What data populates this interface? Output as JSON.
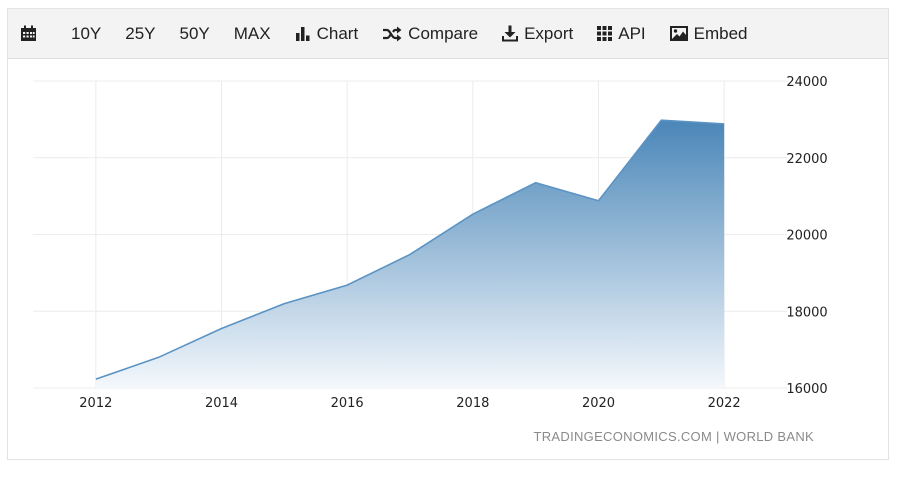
{
  "toolbar": {
    "items": [
      {
        "id": "calendar",
        "icon": "calendar-icon",
        "label": ""
      },
      {
        "id": "10y",
        "label": "10Y"
      },
      {
        "id": "25y",
        "label": "25Y"
      },
      {
        "id": "50y",
        "label": "50Y"
      },
      {
        "id": "max",
        "label": "MAX"
      },
      {
        "id": "chart",
        "icon": "bar-chart-icon",
        "label": "Chart"
      },
      {
        "id": "compare",
        "icon": "shuffle-icon",
        "label": "Compare"
      },
      {
        "id": "export",
        "icon": "download-icon",
        "label": "Export"
      },
      {
        "id": "api",
        "icon": "grid-icon",
        "label": "API"
      },
      {
        "id": "embed",
        "icon": "image-icon",
        "label": "Embed"
      }
    ]
  },
  "source": "TRADINGECONOMICS.COM  |  WORLD BANK",
  "colors": {
    "line": "#5b93c4",
    "fill_top": "#4a86b8",
    "fill_bottom": "#f4f8fc",
    "grid": "#ececec"
  },
  "chart_data": {
    "type": "area",
    "x": [
      2012,
      2013,
      2014,
      2015,
      2016,
      2017,
      2018,
      2019,
      2020,
      2021,
      2022
    ],
    "series": [
      {
        "values": [
          16230,
          16800,
          17550,
          18200,
          18680,
          19480,
          20530,
          21350,
          20880,
          22980,
          22880
        ]
      }
    ],
    "xticks": [
      "2012",
      "2014",
      "2016",
      "2018",
      "2020",
      "2022"
    ],
    "yticks": [
      "16000",
      "18000",
      "20000",
      "22000",
      "24000"
    ],
    "xlim": [
      2011,
      2023
    ],
    "ylim": [
      16000,
      24000
    ],
    "grid": true,
    "yaxis_side": "right"
  }
}
